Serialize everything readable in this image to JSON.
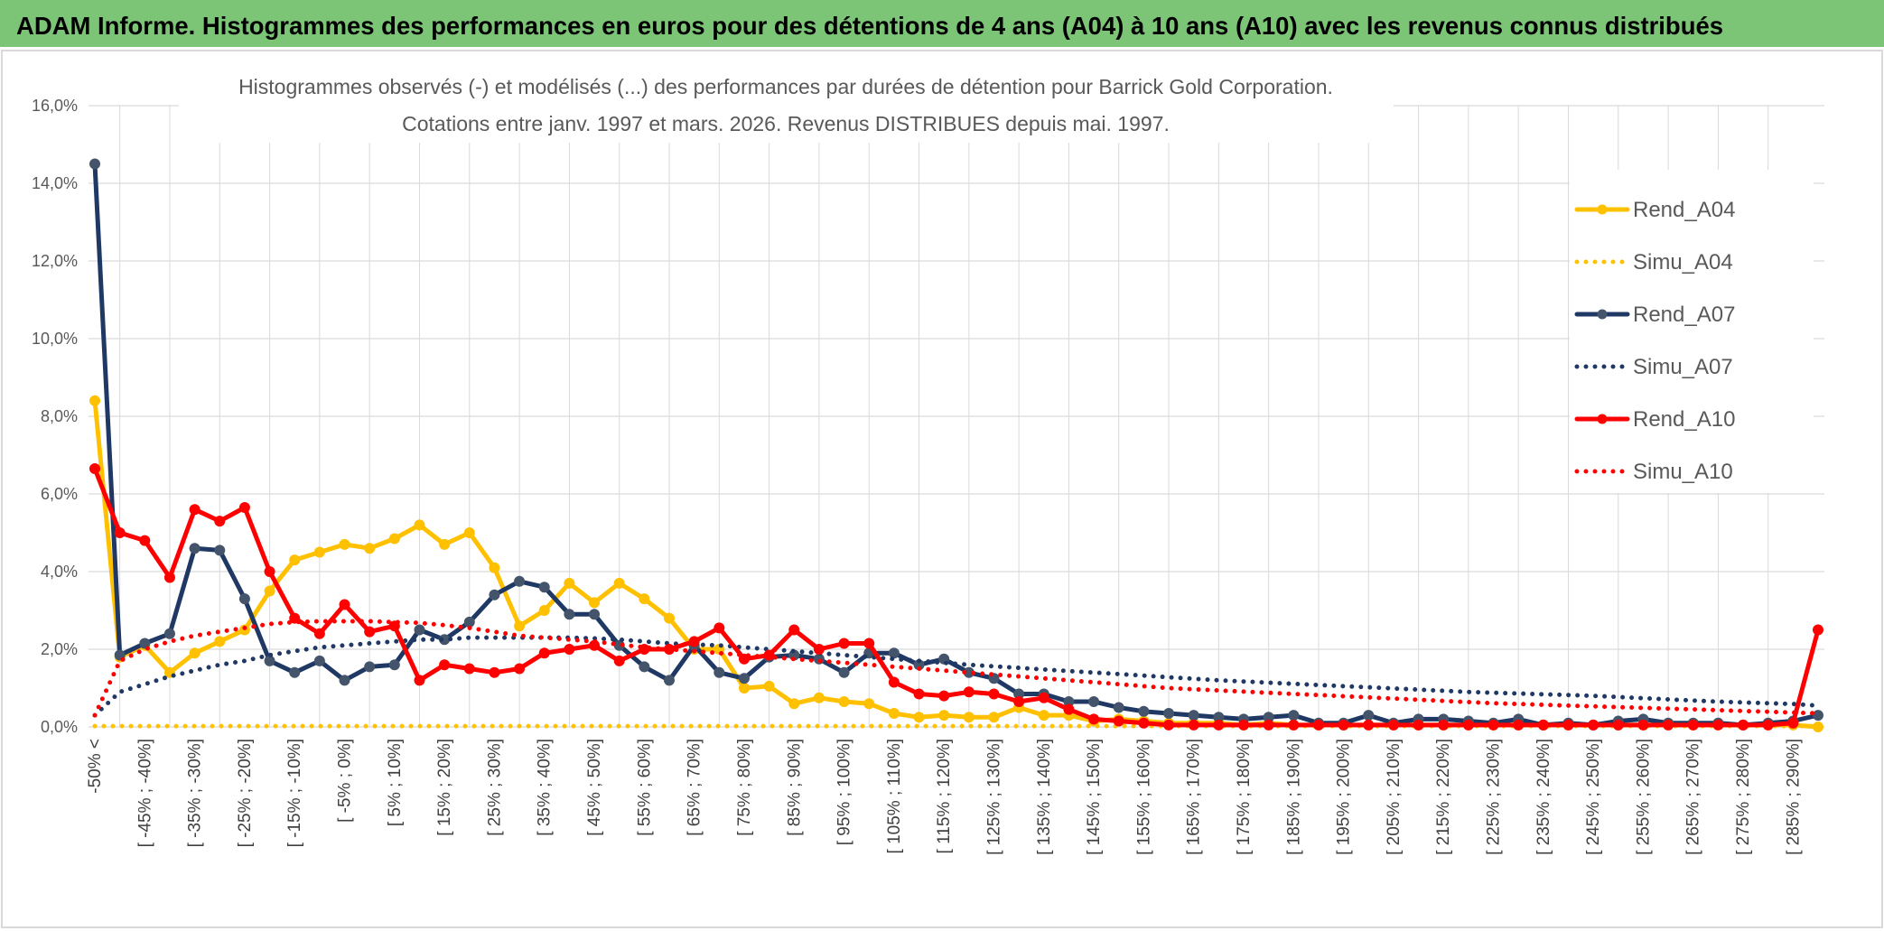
{
  "chart_data": {
    "type": "line",
    "title": "ADAM Informe. Histogrammes des performances en euros pour des détentions de 4 ans (A04) à 10 ans (A10) avec les revenus connus distribués",
    "subtitle": [
      "Histogrammes observés (-) et modélisés (...) des performances par durées de détention pour Barrick Gold Corporation.",
      "Cotations entre janv. 1997 et mars. 2026. Revenus DISTRIBUES depuis mai. 1997."
    ],
    "categories": [
      "-50% <",
      null,
      "[ -45% ; -40%]",
      null,
      "[ -35% ; -30%]",
      null,
      "[ -25% ; -20%]",
      null,
      "[ -15% ; -10%]",
      null,
      "[ -5% ; 0%]",
      null,
      "[ 5% ; 10%]",
      null,
      "[ 15% ; 20%]",
      null,
      "[ 25% ; 30%]",
      null,
      "[ 35% ; 40%]",
      null,
      "[ 45% ; 50%]",
      null,
      "[ 55% ; 60%]",
      null,
      "[ 65% ; 70%]",
      null,
      "[ 75% ; 80%]",
      null,
      "[ 85% ; 90%]",
      null,
      "[ 95% ; 100%]",
      null,
      "[ 105% ; 110%]",
      null,
      "[ 115% ; 120%]",
      null,
      "[ 125% ; 130%]",
      null,
      "[ 135% ; 140%]",
      null,
      "[ 145% ; 150%]",
      null,
      "[ 155% ; 160%]",
      null,
      "[ 165% ; 170%]",
      null,
      "[ 175% ; 180%]",
      null,
      "[ 185% ; 190%]",
      null,
      "[ 195% ; 200%]",
      null,
      "[ 205% ; 210%]",
      null,
      "[ 215% ; 220%]",
      null,
      "[ 225% ; 230%]",
      null,
      "[ 235% ; 240%]",
      null,
      "[ 245% ; 250%]",
      null,
      "[ 255% ; 260%]",
      null,
      "[ 265% ; 270%]",
      null,
      "[ 275% ; 280%]",
      null,
      "[ 285% ; 290%]",
      null
    ],
    "series": [
      {
        "name": "Rend_A04",
        "color": "#ffc000",
        "line_style": "solid",
        "markers": true,
        "values": [
          8.4,
          1.8,
          2.1,
          1.4,
          1.9,
          2.2,
          2.5,
          3.5,
          4.3,
          4.5,
          4.7,
          4.6,
          4.85,
          5.2,
          4.7,
          5.0,
          4.1,
          2.6,
          3.0,
          3.7,
          3.2,
          3.7,
          3.3,
          2.8,
          2.0,
          2.0,
          1.0,
          1.05,
          0.6,
          0.75,
          0.65,
          0.6,
          0.35,
          0.25,
          0.3,
          0.25,
          0.25,
          0.5,
          0.3,
          0.3,
          0.15,
          0.2,
          0.15,
          0.1,
          0.1,
          0.1,
          0.05,
          0.1,
          0.05,
          0.05,
          0.05,
          0.05,
          0.05,
          0.05,
          0.05,
          0.05,
          0.05,
          0.05,
          0.05,
          0.05,
          0.05,
          0.05,
          0.05,
          0.05,
          0.05,
          0.05,
          0.05,
          0.05,
          0.05,
          0.0
        ]
      },
      {
        "name": "Simu_A04",
        "color": "#ffc000",
        "line_style": "dotted",
        "markers": false,
        "values": [
          0.02,
          0.02,
          0.02,
          0.02,
          0.02,
          0.02,
          0.02,
          0.02,
          0.02,
          0.02,
          0.02,
          0.02,
          0.02,
          0.02,
          0.02,
          0.02,
          0.02,
          0.02,
          0.02,
          0.02,
          0.02,
          0.02,
          0.02,
          0.02,
          0.02,
          0.02,
          0.02,
          0.02,
          0.02,
          0.02,
          0.02,
          0.02,
          0.02,
          0.02,
          0.02,
          0.02,
          0.02,
          0.02,
          0.02,
          0.02,
          0.02,
          0.02,
          0.02,
          0.02,
          0.02,
          0.02,
          0.02,
          0.02,
          0.02,
          0.02,
          0.02,
          0.02,
          0.02,
          0.02,
          0.02,
          0.02,
          0.02,
          0.02,
          0.02,
          0.02,
          0.02,
          0.02,
          0.02,
          0.02,
          0.02,
          0.02,
          0.02,
          0.02,
          0.02,
          0.02
        ]
      },
      {
        "name": "Rend_A07",
        "color": "#1f3864",
        "marker_color": "#44546a",
        "line_style": "solid",
        "markers": true,
        "values": [
          14.5,
          1.85,
          2.15,
          2.4,
          4.6,
          4.55,
          3.3,
          1.7,
          1.4,
          1.7,
          1.2,
          1.55,
          1.6,
          2.5,
          2.25,
          2.7,
          3.4,
          3.75,
          3.6,
          2.9,
          2.9,
          2.1,
          1.55,
          1.2,
          2.1,
          1.4,
          1.25,
          1.8,
          1.85,
          1.75,
          1.4,
          1.9,
          1.9,
          1.6,
          1.75,
          1.4,
          1.25,
          0.85,
          0.85,
          0.65,
          0.65,
          0.5,
          0.4,
          0.35,
          0.3,
          0.25,
          0.2,
          0.25,
          0.3,
          0.1,
          0.1,
          0.3,
          0.1,
          0.2,
          0.2,
          0.15,
          0.1,
          0.2,
          0.05,
          0.1,
          0.05,
          0.15,
          0.2,
          0.1,
          0.1,
          0.1,
          0.05,
          0.1,
          0.15,
          0.3
        ]
      },
      {
        "name": "Simu_A07",
        "color": "#1f3864",
        "line_style": "dotted",
        "markers": false,
        "values": [
          0.3,
          0.9,
          1.1,
          1.3,
          1.45,
          1.6,
          1.7,
          1.85,
          1.95,
          2.05,
          2.1,
          2.15,
          2.2,
          2.25,
          2.25,
          2.3,
          2.3,
          2.3,
          2.3,
          2.3,
          2.28,
          2.25,
          2.2,
          2.15,
          2.12,
          2.1,
          2.05,
          2.0,
          1.95,
          1.9,
          1.85,
          1.8,
          1.75,
          1.7,
          1.65,
          1.6,
          1.56,
          1.52,
          1.48,
          1.44,
          1.4,
          1.36,
          1.32,
          1.28,
          1.24,
          1.2,
          1.17,
          1.14,
          1.11,
          1.08,
          1.05,
          1.02,
          0.99,
          0.96,
          0.93,
          0.9,
          0.88,
          0.86,
          0.84,
          0.82,
          0.8,
          0.77,
          0.74,
          0.71,
          0.68,
          0.65,
          0.63,
          0.61,
          0.59,
          0.55
        ]
      },
      {
        "name": "Rend_A10",
        "color": "#ff0000",
        "line_style": "solid",
        "markers": true,
        "values": [
          6.65,
          5.0,
          4.8,
          3.85,
          5.6,
          5.3,
          5.65,
          4.0,
          2.8,
          2.4,
          3.15,
          2.45,
          2.6,
          1.2,
          1.6,
          1.5,
          1.4,
          1.5,
          1.9,
          2.0,
          2.1,
          1.7,
          2.0,
          2.0,
          2.2,
          2.55,
          1.75,
          1.85,
          2.5,
          2.0,
          2.15,
          2.15,
          1.15,
          0.85,
          0.8,
          0.9,
          0.85,
          0.65,
          0.75,
          0.45,
          0.2,
          0.15,
          0.1,
          0.05,
          0.05,
          0.05,
          0.05,
          0.05,
          0.05,
          0.05,
          0.05,
          0.05,
          0.05,
          0.05,
          0.05,
          0.05,
          0.05,
          0.05,
          0.05,
          0.05,
          0.05,
          0.05,
          0.05,
          0.05,
          0.05,
          0.05,
          0.05,
          0.05,
          0.1,
          2.5
        ]
      },
      {
        "name": "Simu_A10",
        "color": "#ff0000",
        "line_style": "dotted",
        "markers": false,
        "values": [
          0.3,
          1.7,
          2.0,
          2.2,
          2.35,
          2.45,
          2.55,
          2.65,
          2.7,
          2.72,
          2.72,
          2.72,
          2.7,
          2.68,
          2.62,
          2.55,
          2.45,
          2.35,
          2.3,
          2.25,
          2.2,
          2.12,
          2.05,
          2.0,
          1.95,
          1.9,
          1.85,
          1.8,
          1.75,
          1.7,
          1.65,
          1.6,
          1.55,
          1.5,
          1.45,
          1.4,
          1.35,
          1.3,
          1.25,
          1.2,
          1.15,
          1.1,
          1.05,
          1.0,
          0.97,
          0.94,
          0.91,
          0.88,
          0.85,
          0.82,
          0.79,
          0.76,
          0.73,
          0.7,
          0.67,
          0.64,
          0.61,
          0.59,
          0.57,
          0.55,
          0.53,
          0.51,
          0.49,
          0.47,
          0.45,
          0.43,
          0.41,
          0.39,
          0.37,
          0.35
        ]
      }
    ],
    "ylim": [
      0,
      16
    ],
    "yticks": [
      {
        "value": 0,
        "label": "0,0%"
      },
      {
        "value": 2,
        "label": "2,0%"
      },
      {
        "value": 4,
        "label": "4,0%"
      },
      {
        "value": 6,
        "label": "6,0%"
      },
      {
        "value": 8,
        "label": "8,0%"
      },
      {
        "value": 10,
        "label": "10,0%"
      },
      {
        "value": 12,
        "label": "12,0%"
      },
      {
        "value": 14,
        "label": "14,0%"
      },
      {
        "value": 16,
        "label": "16,0%"
      }
    ],
    "grid": true,
    "legend_position": "right"
  }
}
